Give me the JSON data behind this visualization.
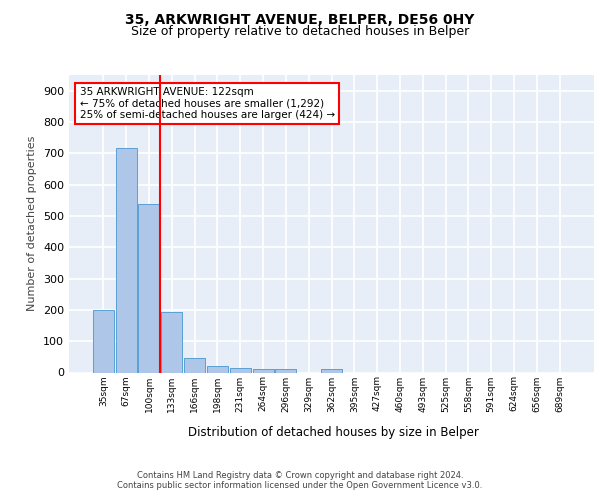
{
  "title1": "35, ARKWRIGHT AVENUE, BELPER, DE56 0HY",
  "title2": "Size of property relative to detached houses in Belper",
  "xlabel": "Distribution of detached houses by size in Belper",
  "ylabel": "Number of detached properties",
  "categories": [
    "35sqm",
    "67sqm",
    "100sqm",
    "133sqm",
    "166sqm",
    "198sqm",
    "231sqm",
    "264sqm",
    "296sqm",
    "329sqm",
    "362sqm",
    "395sqm",
    "427sqm",
    "460sqm",
    "493sqm",
    "525sqm",
    "558sqm",
    "591sqm",
    "624sqm",
    "656sqm",
    "689sqm"
  ],
  "values": [
    201,
    716,
    537,
    193,
    46,
    20,
    14,
    12,
    10,
    0,
    10,
    0,
    0,
    0,
    0,
    0,
    0,
    0,
    0,
    0,
    0
  ],
  "bar_color": "#aec6e8",
  "bar_edge_color": "#5a9fd4",
  "red_line_index": 2.5,
  "annotation_text": "35 ARKWRIGHT AVENUE: 122sqm\n← 75% of detached houses are smaller (1,292)\n25% of semi-detached houses are larger (424) →",
  "annotation_box_color": "white",
  "annotation_box_edge_color": "red",
  "red_line_color": "red",
  "ylim": [
    0,
    950
  ],
  "yticks": [
    0,
    100,
    200,
    300,
    400,
    500,
    600,
    700,
    800,
    900
  ],
  "footer_text": "Contains HM Land Registry data © Crown copyright and database right 2024.\nContains public sector information licensed under the Open Government Licence v3.0.",
  "bg_color": "#e8eef8",
  "grid_color": "white",
  "title1_fontsize": 10,
  "title2_fontsize": 9
}
